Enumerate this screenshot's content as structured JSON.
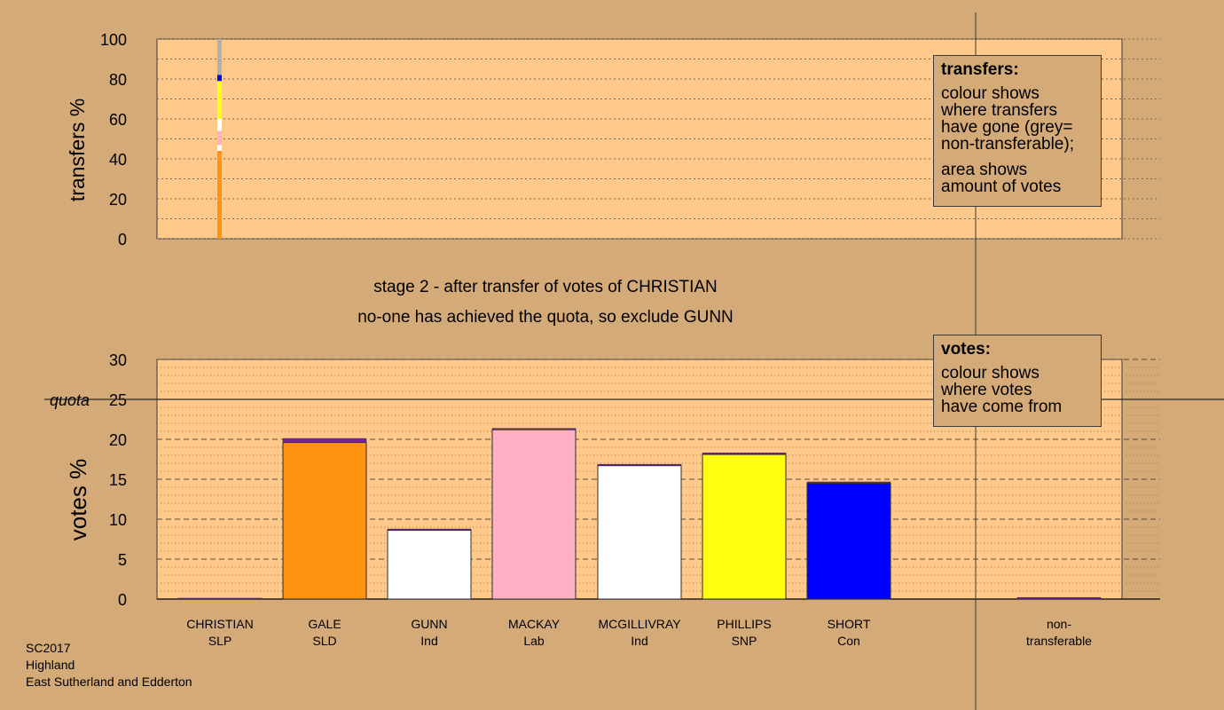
{
  "caption": {
    "line1": "stage 2 - after transfer of votes of CHRISTIAN",
    "line2": "no-one has achieved the quota, so exclude GUNN"
  },
  "colors": {
    "background": "#d4aa78",
    "plot_bg": "#fec98b",
    "SLD": "#ff9410",
    "Ind_GUNN": "#ffffff",
    "Lab": "#ffb0c4",
    "Ind_MCGILLIVRAY": "#ffffff",
    "SNP": "#ffff10",
    "Con": "#0000ff",
    "SLP": "#7b1fa2",
    "non_transferable": "#b0b0b0"
  },
  "legends": {
    "transfers": {
      "title": "transfers:",
      "lines": [
        "colour shows",
        "where transfers",
        "have gone (grey=",
        "non-transferable);"
      ],
      "lines2": [
        "area shows",
        "amount of votes"
      ]
    },
    "votes": {
      "title": "votes:",
      "lines": [
        "colour shows",
        "where votes",
        "have come from"
      ]
    }
  },
  "footer": {
    "line1": "SC2017",
    "line2": "Highland",
    "line3": "East Sutherland and Edderton"
  },
  "chart_data": [
    {
      "type": "bar",
      "ylabel": "transfers %",
      "ylim": [
        0,
        100
      ],
      "yticks": [
        0,
        20,
        40,
        60,
        80,
        100
      ],
      "grid": "dotted",
      "legend": "top-right",
      "transfer_from": "CHRISTIAN",
      "segments": [
        {
          "to": "GALE",
          "party": "SLD",
          "value": 44
        },
        {
          "to": "GUNN",
          "party": "Ind",
          "value": 3
        },
        {
          "to": "MACKAY",
          "party": "Lab",
          "value": 7
        },
        {
          "to": "MCGILLIVRAY",
          "party": "Ind",
          "value": 6
        },
        {
          "to": "PHILLIPS",
          "party": "SNP",
          "value": 19
        },
        {
          "to": "SHORT",
          "party": "Con",
          "value": 3
        },
        {
          "to": "non-transferable",
          "party": "",
          "value": 18
        }
      ]
    },
    {
      "type": "bar",
      "ylabel": "votes %",
      "ylim": [
        0,
        30
      ],
      "yticks": [
        0,
        5,
        10,
        15,
        20,
        25,
        30
      ],
      "quota": {
        "label": "quota",
        "value": 25
      },
      "grid": "dashed",
      "legend": "top-right",
      "candidates": [
        {
          "name": "CHRISTIAN",
          "party": "SLP",
          "segments": [
            {
              "party": "SLP",
              "value": 0.0
            }
          ]
        },
        {
          "name": "GALE",
          "party": "SLD",
          "segments": [
            {
              "party": "SLD",
              "value": 19.6
            },
            {
              "party": "SLP",
              "value": 0.5
            }
          ]
        },
        {
          "name": "GUNN",
          "party": "Ind",
          "segments": [
            {
              "party": "Ind",
              "value": 8.6
            },
            {
              "party": "SLP",
              "value": 0.05
            }
          ]
        },
        {
          "name": "MACKAY",
          "party": "Lab",
          "segments": [
            {
              "party": "Lab",
              "value": 21.2
            },
            {
              "party": "SLP",
              "value": 0.1
            }
          ]
        },
        {
          "name": "MCGILLIVRAY",
          "party": "Ind",
          "segments": [
            {
              "party": "Ind",
              "value": 16.7
            },
            {
              "party": "SLP",
              "value": 0.1
            }
          ]
        },
        {
          "name": "PHILLIPS",
          "party": "SNP",
          "segments": [
            {
              "party": "SNP",
              "value": 18.1
            },
            {
              "party": "SLP",
              "value": 0.2
            }
          ]
        },
        {
          "name": "SHORT",
          "party": "Con",
          "segments": [
            {
              "party": "Con",
              "value": 14.5
            },
            {
              "party": "SLP",
              "value": 0.05
            }
          ]
        },
        {
          "name": "non-",
          "party": "transferable",
          "nontransferable": true,
          "segments": [
            {
              "party": "SLP",
              "value": 0.2
            }
          ]
        }
      ]
    }
  ]
}
